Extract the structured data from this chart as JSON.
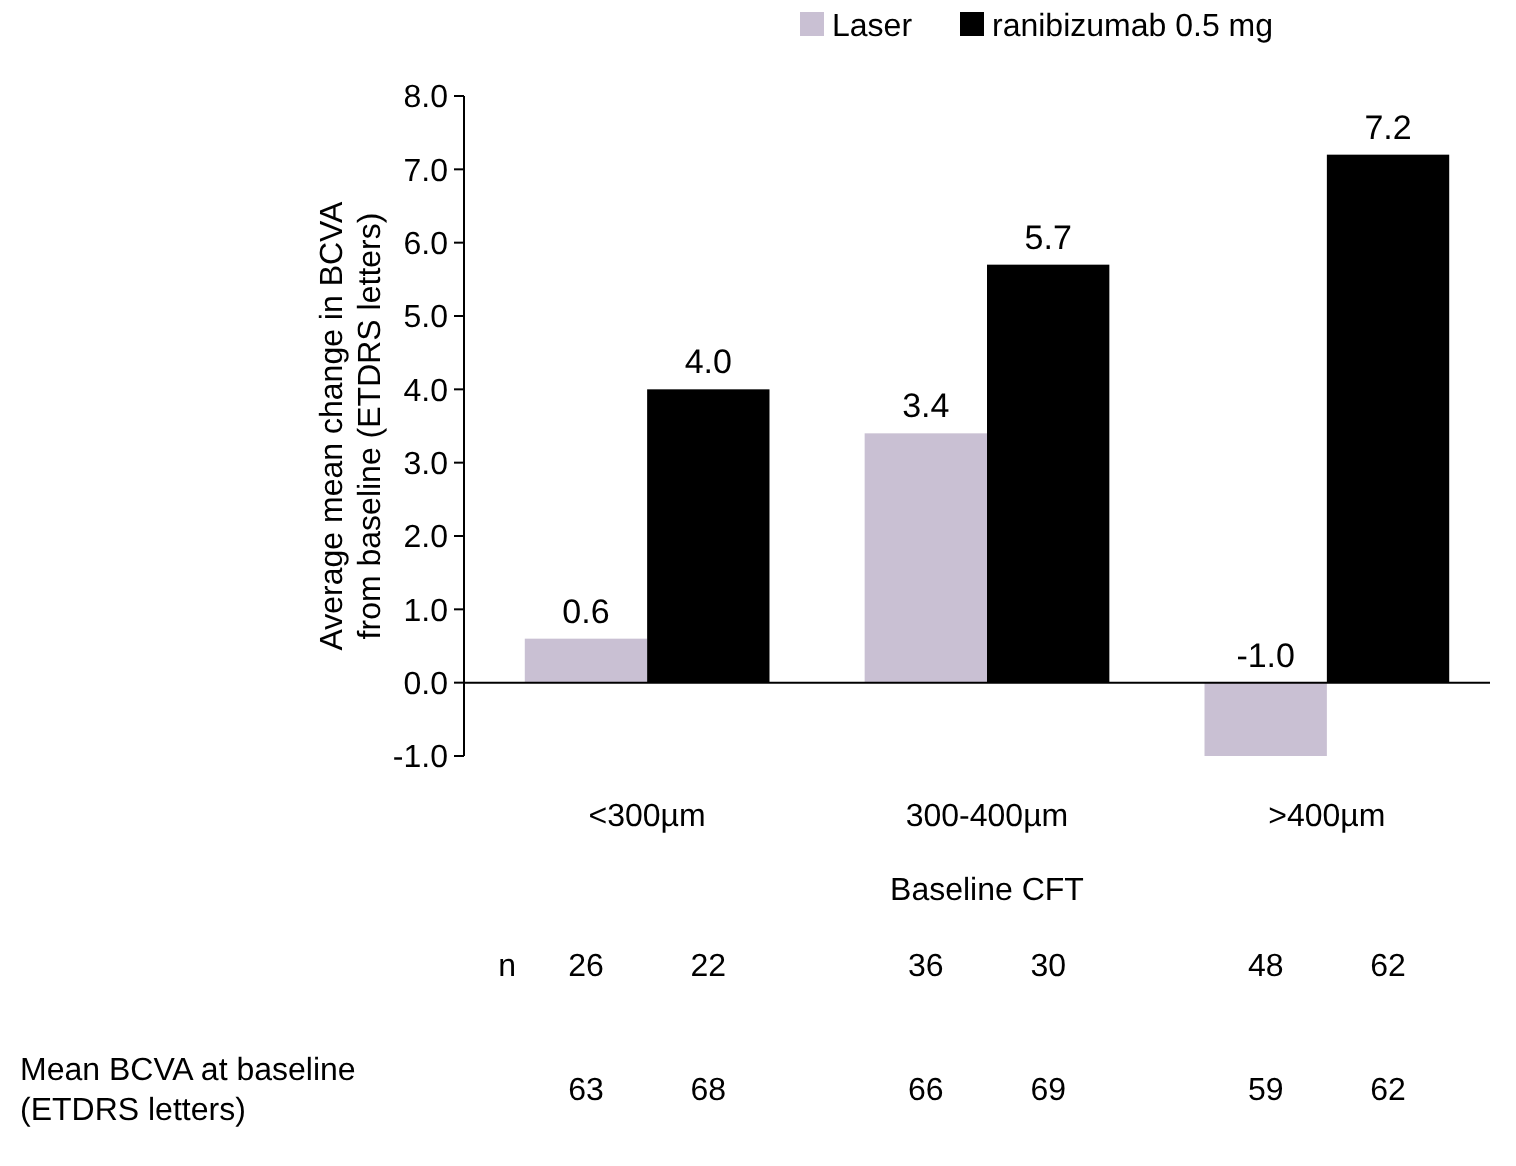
{
  "chart_data": {
    "type": "bar",
    "xlabel": "Baseline CFT",
    "ylabel": "Average mean change in BCVA\nfrom baseline (ETDRS letters)",
    "categories": [
      "<300µm",
      "300-400µm",
      ">400µm"
    ],
    "series": [
      {
        "name": "Laser",
        "color": "#c9c0d3",
        "values": [
          0.6,
          3.4,
          -1.0
        ],
        "value_labels": [
          "0.6",
          "3.4",
          "-1.0"
        ]
      },
      {
        "name": "ranibizumab 0.5 mg",
        "color": "#000000",
        "values": [
          4.0,
          5.7,
          7.2
        ],
        "value_labels": [
          "4.0",
          "5.7",
          "7.2"
        ]
      }
    ],
    "ylim": [
      -1,
      8
    ],
    "yticks": [
      {
        "value": -1,
        "label": "-1.0"
      },
      {
        "value": 0,
        "label": "0.0"
      },
      {
        "value": 1,
        "label": "1.0"
      },
      {
        "value": 2,
        "label": "2.0"
      },
      {
        "value": 3,
        "label": "3.0"
      },
      {
        "value": 4,
        "label": "4.0"
      },
      {
        "value": 5,
        "label": "5.0"
      },
      {
        "value": 6,
        "label": "6.0"
      },
      {
        "value": 7,
        "label": "7.0"
      },
      {
        "value": 8,
        "label": "8.0"
      }
    ],
    "legend": "top",
    "annotations": [
      "n",
      "26",
      "22",
      "36",
      "30",
      "48",
      "62",
      "Mean BCVA at baseline\n(ETDRS letters)",
      "63",
      "68",
      "66",
      "69",
      "59",
      "62"
    ]
  }
}
